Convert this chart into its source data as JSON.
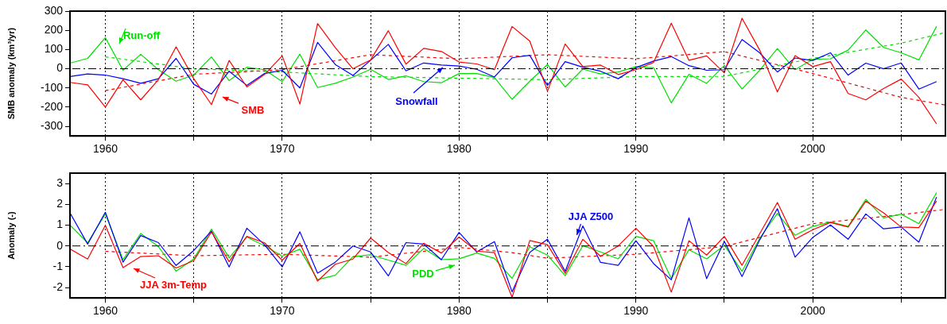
{
  "chart_data": [
    {
      "type": "line",
      "ylabel": "SMB anomaly (km³/yr)",
      "x": [
        1958,
        1959,
        1960,
        1961,
        1962,
        1963,
        1964,
        1965,
        1966,
        1967,
        1968,
        1969,
        1970,
        1971,
        1972,
        1973,
        1974,
        1975,
        1976,
        1977,
        1978,
        1979,
        1980,
        1981,
        1982,
        1983,
        1984,
        1985,
        1986,
        1987,
        1988,
        1989,
        1990,
        1991,
        1992,
        1993,
        1994,
        1995,
        1996,
        1997,
        1998,
        1999,
        2000,
        2001,
        2002,
        2003,
        2004,
        2005,
        2006,
        2007
      ],
      "xlim": [
        1958,
        2007.5
      ],
      "xticks": [
        1960,
        {
          "value": 1965,
          "label": null
        },
        1970,
        {
          "value": 1975,
          "label": null
        },
        1980,
        {
          "value": 1985,
          "label": null
        },
        1990,
        {
          "value": 1995,
          "label": null
        },
        2000,
        {
          "value": 2005,
          "label": null
        }
      ],
      "ylim": [
        -350,
        300
      ],
      "yticks": [
        -300,
        -200,
        -100,
        0,
        100,
        200,
        300
      ],
      "grid": "x",
      "marker": "none",
      "ref_lines": [
        {
          "axis": "y",
          "value": 0,
          "color": "#000000",
          "line_style": "dashed"
        }
      ],
      "series": [
        {
          "name": "SMB",
          "color": "#ff0000",
          "values": [
            -71,
            -84,
            -200,
            -57,
            -162,
            -57,
            114,
            -52,
            -187,
            43,
            -95,
            -30,
            67,
            -184,
            235,
            110,
            0,
            46,
            198,
            24,
            106,
            90,
            35,
            25,
            -5,
            220,
            144,
            -117,
            129,
            11,
            19,
            -30,
            -5,
            33,
            237,
            44,
            67,
            -22,
            263,
            97,
            -121,
            68,
            11,
            37,
            -129,
            -162,
            -103,
            -54,
            -149,
            -287
          ]
        },
        {
          "name": "Snowfall",
          "color": "#0000ff",
          "values": [
            -41,
            -27,
            -33,
            -52,
            -76,
            -52,
            54,
            -81,
            -132,
            -13,
            -87,
            -25,
            -8,
            -100,
            137,
            22,
            -35,
            44,
            127,
            -11,
            30,
            19,
            14,
            -3,
            -43,
            57,
            70,
            -87,
            37,
            8,
            -13,
            -52,
            6,
            40,
            63,
            16,
            -8,
            -5,
            152,
            83,
            -17,
            56,
            43,
            83,
            -33,
            29,
            0,
            30,
            -106,
            -67
          ]
        },
        {
          "name": "Run-off",
          "color": "#00e000",
          "values": [
            29,
            54,
            162,
            -8,
            75,
            -5,
            -65,
            -33,
            62,
            -62,
            8,
            -5,
            -67,
            76,
            -98,
            -76,
            -43,
            -3,
            -56,
            -37,
            -67,
            -73,
            -25,
            -25,
            -46,
            -159,
            -65,
            22,
            -95,
            -2,
            -27,
            -17,
            11,
            5,
            -178,
            -29,
            -76,
            17,
            -106,
            -8,
            105,
            -5,
            49,
            52,
            97,
            202,
            111,
            83,
            46,
            221
          ]
        },
        {
          "color": "#ff0000",
          "line_style": "dashed",
          "x": [
            1960,
            1965,
            1970,
            1975,
            1980,
            1985,
            1990,
            1995,
            2000,
            2005,
            2007.5
          ],
          "values": [
            -114,
            -29,
            -5,
            73,
            52,
            73,
            52,
            89,
            -25,
            -149,
            -189
          ]
        },
        {
          "color": "#00e000",
          "line_style": "dashed",
          "x": [
            1960,
            1965,
            1970,
            1975,
            1980,
            1985,
            1990,
            1995,
            2000,
            2005,
            2007.5
          ],
          "values": [
            62,
            0,
            -17,
            -41,
            -49,
            -57,
            -41,
            -40,
            54,
            133,
            189
          ]
        }
      ]
    },
    {
      "type": "line",
      "ylabel": "Anomaly (-)",
      "x": [
        1958,
        1959,
        1960,
        1961,
        1962,
        1963,
        1964,
        1965,
        1966,
        1967,
        1968,
        1969,
        1970,
        1971,
        1972,
        1973,
        1974,
        1975,
        1976,
        1977,
        1978,
        1979,
        1980,
        1981,
        1982,
        1983,
        1984,
        1985,
        1986,
        1987,
        1988,
        1989,
        1990,
        1991,
        1992,
        1993,
        1994,
        1995,
        1996,
        1997,
        1998,
        1999,
        2000,
        2001,
        2002,
        2003,
        2004,
        2005,
        2006,
        2007
      ],
      "xlim": [
        1958,
        2007.5
      ],
      "xticks": [
        1960,
        {
          "value": 1965,
          "label": null
        },
        1970,
        {
          "value": 1975,
          "label": null
        },
        1980,
        {
          "value": 1985,
          "label": null
        },
        1990,
        {
          "value": 1995,
          "label": null
        },
        2000,
        {
          "value": 2005,
          "label": null
        }
      ],
      "ylim": [
        -2.5,
        3.5
      ],
      "yticks": [
        -2,
        -1,
        0,
        1,
        2,
        3
      ],
      "grid": "x",
      "marker": "none",
      "ref_lines": [
        {
          "axis": "y",
          "value": 0,
          "color": "#000000",
          "line_style": "dashed"
        }
      ],
      "series": [
        {
          "name": "JJA 3m-Temp",
          "color": "#ff0000",
          "values": [
            -0.15,
            -0.63,
            0.99,
            -1.04,
            -0.51,
            -0.47,
            -1.06,
            -0.71,
            0.68,
            -0.76,
            0.46,
            0.15,
            -0.69,
            0.12,
            -1.69,
            -0.88,
            -0.63,
            0.38,
            -0.32,
            -0.85,
            0.13,
            -0.34,
            0.43,
            -0.25,
            -0.32,
            -2.47,
            0.26,
            0.06,
            -1.32,
            0.32,
            -0.5,
            0,
            0.85,
            -0.03,
            -2.22,
            0.25,
            -0.44,
            0.46,
            -0.93,
            0.59,
            2.09,
            0.32,
            0.78,
            1.13,
            0.91,
            2.15,
            1.59,
            0.91,
            0.88,
            2.16
          ]
        },
        {
          "name": "JJA Z500",
          "color": "#0000ff",
          "values": [
            1.59,
            0.09,
            1.62,
            -0.78,
            0.5,
            0.16,
            -0.94,
            -0.22,
            0.72,
            -1.01,
            0.85,
            0.06,
            -1.01,
            0.68,
            -1.31,
            -0.78,
            0,
            -0.29,
            -1.44,
            0.16,
            0.09,
            -0.66,
            0.65,
            -0.29,
            0.21,
            -2.21,
            -0.31,
            0.32,
            -1.22,
            0.96,
            -0.79,
            -0.93,
            0.25,
            -0.85,
            -1.63,
            1.35,
            -1.57,
            0.22,
            -1.47,
            0.29,
            1.79,
            -0.54,
            0.41,
            1.01,
            0.32,
            1.54,
            0.82,
            0.91,
            0.18,
            2.35
          ]
        },
        {
          "name": "PDD",
          "color": "#00e000",
          "values": [
            1.0,
            0.15,
            1.54,
            -0.66,
            0.6,
            -0.03,
            -1.21,
            -0.62,
            0.81,
            -0.57,
            0.43,
            0.01,
            -0.49,
            -0.16,
            -1.62,
            -1.41,
            -0.51,
            -0.43,
            -0.68,
            -0.93,
            -0.12,
            -0.66,
            -0.62,
            -0.34,
            -0.6,
            -1.56,
            -0.04,
            -0.44,
            -1.43,
            0.01,
            -0.29,
            -0.62,
            0.46,
            0.25,
            -1.57,
            -0.18,
            -0.62,
            0.03,
            -1.22,
            0.37,
            1.57,
            0.51,
            0.94,
            1.15,
            0.94,
            2.24,
            1.35,
            1.53,
            1.07,
            2.56
          ]
        },
        {
          "color": "#ff0000",
          "line_style": "dashed",
          "x": [
            1960,
            1965,
            1970,
            1975,
            1980,
            1983,
            1985,
            1990,
            1995,
            2000,
            2005,
            2007.5
          ],
          "values": [
            -0.26,
            -0.47,
            -0.4,
            -0.54,
            -0.07,
            -0.32,
            -0.59,
            -0.4,
            -0.03,
            1.07,
            1.5,
            1.76
          ]
        }
      ]
    }
  ]
}
